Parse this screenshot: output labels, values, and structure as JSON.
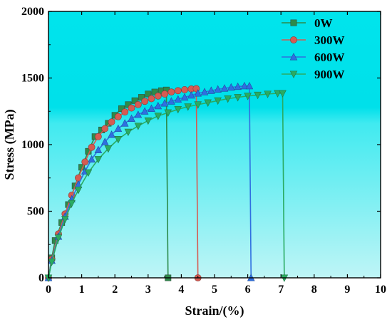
{
  "chart_data": {
    "type": "line",
    "xlabel": "Strain/(%)",
    "ylabel": "Stress (MPa)",
    "xlim": [
      0,
      10
    ],
    "ylim": [
      0,
      2000
    ],
    "x_ticks": [
      "0",
      "1",
      "2",
      "3",
      "4",
      "5",
      "6",
      "7",
      "8",
      "9",
      "10"
    ],
    "y_ticks": [
      "0",
      "500",
      "1000",
      "1500",
      "2000"
    ],
    "background_gradient": [
      "#00e4ec",
      "#bff5f6"
    ],
    "legend_position": "top-right",
    "series": [
      {
        "name": "0W",
        "color": "#2d8a4a",
        "marker": "square",
        "points": [
          [
            0,
            0
          ],
          [
            0.1,
            150
          ],
          [
            0.2,
            280
          ],
          [
            0.4,
            415
          ],
          [
            0.6,
            550
          ],
          [
            0.8,
            690
          ],
          [
            1.0,
            830
          ],
          [
            1.2,
            950
          ],
          [
            1.4,
            1060
          ],
          [
            1.6,
            1110
          ],
          [
            1.8,
            1160
          ],
          [
            2.0,
            1220
          ],
          [
            2.2,
            1270
          ],
          [
            2.4,
            1300
          ],
          [
            2.6,
            1330
          ],
          [
            2.8,
            1355
          ],
          [
            3.0,
            1380
          ],
          [
            3.2,
            1395
          ],
          [
            3.4,
            1405
          ],
          [
            3.55,
            1410
          ],
          [
            3.6,
            0
          ]
        ]
      },
      {
        "name": "300W",
        "color": "#d65b52",
        "marker": "circle",
        "points": [
          [
            0,
            0
          ],
          [
            0.1,
            140
          ],
          [
            0.3,
            330
          ],
          [
            0.5,
            480
          ],
          [
            0.7,
            620
          ],
          [
            0.9,
            750
          ],
          [
            1.1,
            870
          ],
          [
            1.3,
            980
          ],
          [
            1.5,
            1060
          ],
          [
            1.7,
            1120
          ],
          [
            1.9,
            1170
          ],
          [
            2.1,
            1210
          ],
          [
            2.3,
            1245
          ],
          [
            2.5,
            1275
          ],
          [
            2.7,
            1300
          ],
          [
            2.9,
            1325
          ],
          [
            3.1,
            1345
          ],
          [
            3.3,
            1365
          ],
          [
            3.5,
            1380
          ],
          [
            3.7,
            1395
          ],
          [
            3.9,
            1405
          ],
          [
            4.1,
            1412
          ],
          [
            4.3,
            1418
          ],
          [
            4.45,
            1420
          ],
          [
            4.5,
            0
          ]
        ]
      },
      {
        "name": "600W",
        "color": "#2f6fe0",
        "marker": "triangle-up",
        "points": [
          [
            0,
            0
          ],
          [
            0.1,
            130
          ],
          [
            0.3,
            310
          ],
          [
            0.5,
            460
          ],
          [
            0.7,
            590
          ],
          [
            0.9,
            700
          ],
          [
            1.1,
            800
          ],
          [
            1.3,
            890
          ],
          [
            1.5,
            960
          ],
          [
            1.7,
            1020
          ],
          [
            1.9,
            1075
          ],
          [
            2.1,
            1120
          ],
          [
            2.3,
            1160
          ],
          [
            2.5,
            1195
          ],
          [
            2.7,
            1225
          ],
          [
            2.9,
            1250
          ],
          [
            3.1,
            1270
          ],
          [
            3.3,
            1290
          ],
          [
            3.5,
            1310
          ],
          [
            3.7,
            1325
          ],
          [
            3.9,
            1340
          ],
          [
            4.1,
            1355
          ],
          [
            4.3,
            1370
          ],
          [
            4.5,
            1385
          ],
          [
            4.7,
            1395
          ],
          [
            4.9,
            1405
          ],
          [
            5.1,
            1415
          ],
          [
            5.3,
            1422
          ],
          [
            5.5,
            1430
          ],
          [
            5.7,
            1435
          ],
          [
            5.9,
            1440
          ],
          [
            6.05,
            1440
          ],
          [
            6.1,
            0
          ]
        ]
      },
      {
        "name": "900W",
        "color": "#2aab62",
        "marker": "triangle-down",
        "points": [
          [
            0,
            0
          ],
          [
            0.1,
            120
          ],
          [
            0.3,
            300
          ],
          [
            0.5,
            440
          ],
          [
            0.7,
            560
          ],
          [
            0.9,
            660
          ],
          [
            1.2,
            790
          ],
          [
            1.5,
            890
          ],
          [
            1.8,
            970
          ],
          [
            2.1,
            1040
          ],
          [
            2.4,
            1095
          ],
          [
            2.7,
            1140
          ],
          [
            3.0,
            1180
          ],
          [
            3.3,
            1215
          ],
          [
            3.6,
            1240
          ],
          [
            3.9,
            1265
          ],
          [
            4.2,
            1285
          ],
          [
            4.5,
            1300
          ],
          [
            4.8,
            1315
          ],
          [
            5.1,
            1330
          ],
          [
            5.4,
            1345
          ],
          [
            5.7,
            1355
          ],
          [
            6.0,
            1365
          ],
          [
            6.3,
            1372
          ],
          [
            6.6,
            1380
          ],
          [
            6.9,
            1385
          ],
          [
            7.05,
            1385
          ],
          [
            7.1,
            0
          ]
        ]
      }
    ]
  }
}
